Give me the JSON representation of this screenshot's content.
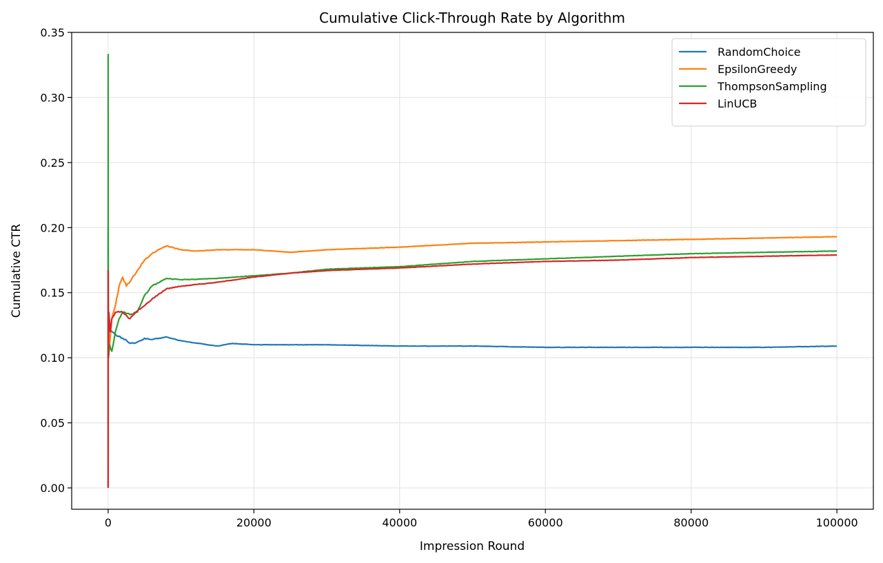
{
  "chart_data": {
    "type": "line",
    "title": "Cumulative Click-Through Rate by Algorithm",
    "xlabel": "Impression Round",
    "ylabel": "Cumulative CTR",
    "xlim": [
      -5000,
      105000
    ],
    "ylim": [
      -0.0164,
      0.35
    ],
    "xticks": [
      0,
      20000,
      40000,
      60000,
      80000,
      100000
    ],
    "xtick_labels": [
      "0",
      "20000",
      "40000",
      "60000",
      "80000",
      "100000"
    ],
    "yticks": [
      0,
      0.05,
      0.1,
      0.15,
      0.2,
      0.25,
      0.3,
      0.35
    ],
    "ytick_labels": [
      "0.00",
      "0.05",
      "0.10",
      "0.15",
      "0.20",
      "0.25",
      "0.30",
      "0.35"
    ],
    "grid": true,
    "legend_position": "top-right",
    "series": [
      {
        "name": "RandomChoice",
        "color": "#1f77b4",
        "x": [
          0,
          10,
          100,
          500,
          1000,
          2000,
          3000,
          4000,
          5000,
          6000,
          8000,
          10000,
          15000,
          17000,
          20000,
          30000,
          40000,
          50000,
          60000,
          70000,
          80000,
          90000,
          100000
        ],
        "y": [
          0.2,
          0.1,
          0.125,
          0.12,
          0.118,
          0.115,
          0.111,
          0.112,
          0.115,
          0.114,
          0.116,
          0.113,
          0.109,
          0.111,
          0.11,
          0.11,
          0.109,
          0.109,
          0.108,
          0.108,
          0.108,
          0.108,
          0.109
        ]
      },
      {
        "name": "EpsilonGreedy",
        "color": "#ff7f0e",
        "x": [
          0,
          20,
          200,
          500,
          1000,
          1500,
          2000,
          2500,
          4000,
          5000,
          6000,
          8000,
          10000,
          12000,
          15000,
          20000,
          25000,
          30000,
          40000,
          50000,
          60000,
          70000,
          80000,
          90000,
          100000
        ],
        "y": [
          0.0,
          0.12,
          0.11,
          0.13,
          0.14,
          0.155,
          0.162,
          0.155,
          0.167,
          0.175,
          0.18,
          0.186,
          0.183,
          0.182,
          0.183,
          0.183,
          0.181,
          0.183,
          0.185,
          0.188,
          0.189,
          0.19,
          0.191,
          0.192,
          0.193
        ]
      },
      {
        "name": "ThompsonSampling",
        "color": "#2ca02c",
        "x": [
          0,
          3,
          10,
          50,
          200,
          500,
          1000,
          1500,
          2000,
          3000,
          4000,
          5000,
          6000,
          8000,
          10000,
          15000,
          20000,
          25000,
          30000,
          40000,
          50000,
          60000,
          70000,
          80000,
          90000,
          100000
        ],
        "y": [
          0.0,
          0.333,
          0.2,
          0.1,
          0.11,
          0.105,
          0.12,
          0.13,
          0.135,
          0.133,
          0.135,
          0.148,
          0.155,
          0.161,
          0.16,
          0.161,
          0.163,
          0.165,
          0.168,
          0.17,
          0.174,
          0.176,
          0.178,
          0.18,
          0.181,
          0.182
        ]
      },
      {
        "name": "LinUCB",
        "color": "#d62728",
        "x": [
          0,
          5,
          30,
          100,
          300,
          500,
          1000,
          2000,
          3000,
          4000,
          5000,
          6000,
          8000,
          10000,
          15000,
          20000,
          25000,
          30000,
          40000,
          50000,
          60000,
          70000,
          80000,
          90000,
          100000
        ],
        "y": [
          0.0,
          0.167,
          0.1,
          0.135,
          0.12,
          0.13,
          0.135,
          0.135,
          0.13,
          0.136,
          0.14,
          0.145,
          0.153,
          0.155,
          0.158,
          0.162,
          0.165,
          0.167,
          0.169,
          0.172,
          0.174,
          0.175,
          0.177,
          0.178,
          0.179
        ]
      }
    ]
  }
}
